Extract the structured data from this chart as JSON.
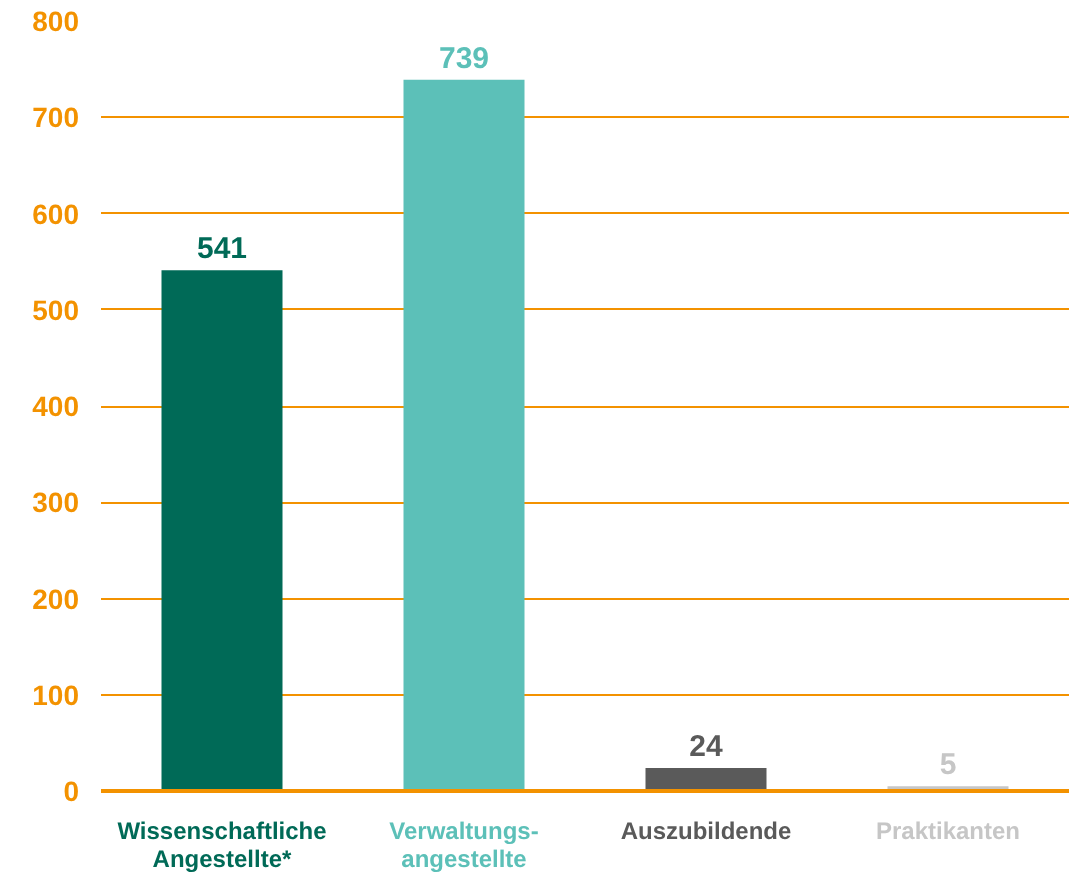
{
  "chart_data": {
    "type": "bar",
    "categories": [
      "Wissenschaftliche\nAngestellte*",
      "Verwaltungs-\nangestellte",
      "Auszubildende",
      "Praktikanten"
    ],
    "values": [
      541,
      739,
      24,
      5
    ],
    "colors": [
      "#006a57",
      "#5cc0b8",
      "#5a5a5a",
      "#c6c6c6"
    ],
    "ylim": [
      0,
      800
    ],
    "yticks": [
      0,
      100,
      200,
      300,
      400,
      500,
      600,
      700,
      800
    ],
    "grid": "y",
    "data_labels": true
  }
}
